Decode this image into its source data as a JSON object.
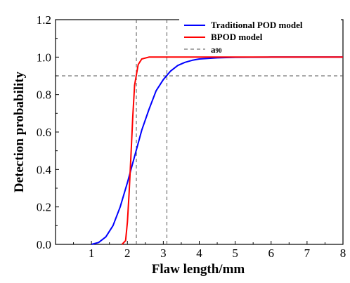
{
  "chart_data": {
    "type": "line",
    "title": "",
    "xlabel": "Flaw length/mm",
    "ylabel": "Detection probability",
    "xlim": [
      0,
      8
    ],
    "ylim": [
      0,
      1.2
    ],
    "x_ticks": [
      "1",
      "2",
      "3",
      "4",
      "5",
      "6",
      "7",
      "8"
    ],
    "y_ticks": [
      "0.0",
      "0.2",
      "0.4",
      "0.6",
      "0.8",
      "1.0",
      "1.2"
    ],
    "grid": false,
    "legend_position": "top-right",
    "series": [
      {
        "name": "Traditional POD model",
        "color": "#0000ff",
        "x": [
          1.0,
          1.2,
          1.4,
          1.6,
          1.8,
          2.0,
          2.2,
          2.4,
          2.6,
          2.8,
          3.0,
          3.2,
          3.4,
          3.6,
          3.8,
          4.0,
          4.5,
          5.0,
          6.0,
          7.0,
          8.0
        ],
        "y": [
          0.0,
          0.01,
          0.04,
          0.1,
          0.2,
          0.33,
          0.47,
          0.61,
          0.72,
          0.82,
          0.88,
          0.925,
          0.955,
          0.972,
          0.983,
          0.99,
          0.996,
          0.999,
          1.0,
          1.0,
          1.0
        ]
      },
      {
        "name": "BPOD model",
        "color": "#ff0000",
        "x": [
          1.85,
          1.95,
          2.0,
          2.05,
          2.1,
          2.15,
          2.2,
          2.3,
          2.4,
          2.6,
          3.0,
          4.0,
          8.0
        ],
        "y": [
          0.0,
          0.02,
          0.12,
          0.28,
          0.48,
          0.68,
          0.85,
          0.96,
          0.99,
          1.0,
          1.0,
          1.0,
          1.0
        ]
      }
    ],
    "reference_lines": {
      "name": "a90",
      "name_main": "a",
      "name_sub": "90",
      "color": "#555555",
      "horizontal_y": 0.9,
      "vertical_x": [
        2.25,
        3.1
      ]
    }
  }
}
